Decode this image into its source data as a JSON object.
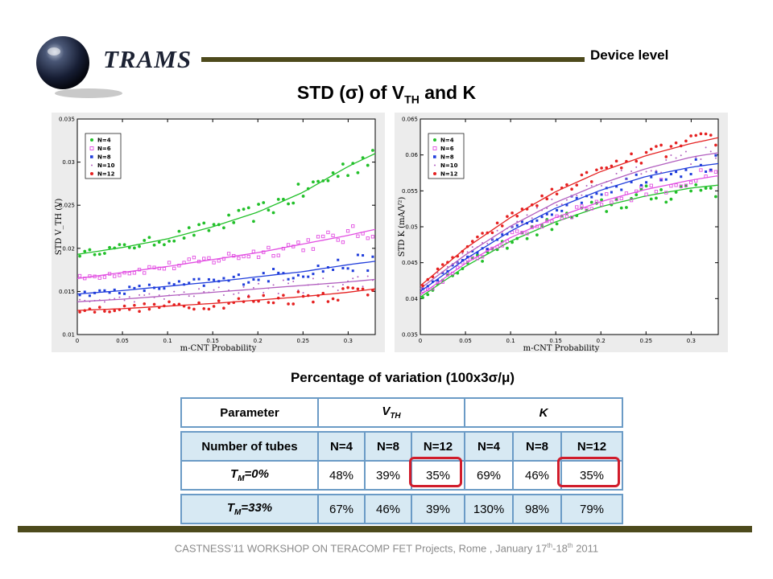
{
  "header": {
    "logo_text": "TRAMS",
    "section": "Device level",
    "title_prefix": "STD (σ) of V",
    "title_sub": "TH",
    "title_suffix": " and K"
  },
  "colors": {
    "N=4": "#22c02a",
    "N=6": "#e24fe2",
    "N=8": "#1f3ddb",
    "N=10": "#b25fbf",
    "N=12": "#e52121",
    "bar": "#4d4a1c",
    "table_border": "#6b9bc6",
    "table_fill": "#d7e9f3",
    "highlight": "#d11c2b"
  },
  "chart_data": [
    {
      "type": "scatter",
      "title": "",
      "xlabel": "m-CNT Probability",
      "ylabel": "STD V_TH (V)",
      "xlim": [
        0,
        0.33
      ],
      "ylim": [
        0.01,
        0.035
      ],
      "xticks": [
        "0",
        "0.05",
        "0.1",
        "0.15",
        "0.2",
        "0.25",
        "0.3"
      ],
      "yticks": [
        "0.01",
        "0.015",
        "0.02",
        "0.025",
        "0.03",
        "0.035"
      ],
      "legend_position": "top-left",
      "grid": false,
      "series": [
        {
          "name": "N=4",
          "marker": "o",
          "x": [
            0,
            0.05,
            0.1,
            0.15,
            0.2,
            0.25,
            0.3,
            0.33
          ],
          "y": [
            0.0193,
            0.0201,
            0.0211,
            0.0225,
            0.0242,
            0.0265,
            0.0295,
            0.031
          ]
        },
        {
          "name": "N=6",
          "marker": "square",
          "x": [
            0,
            0.05,
            0.1,
            0.15,
            0.2,
            0.25,
            0.3,
            0.33
          ],
          "y": [
            0.0165,
            0.0172,
            0.0179,
            0.0187,
            0.0195,
            0.0205,
            0.0215,
            0.0222
          ]
        },
        {
          "name": "N=8",
          "marker": "x",
          "x": [
            0,
            0.05,
            0.1,
            0.15,
            0.2,
            0.25,
            0.3,
            0.33
          ],
          "y": [
            0.0147,
            0.0151,
            0.0156,
            0.0161,
            0.0167,
            0.0173,
            0.0181,
            0.0185
          ]
        },
        {
          "name": "N=10",
          "marker": "dot",
          "x": [
            0,
            0.05,
            0.1,
            0.15,
            0.2,
            0.25,
            0.3,
            0.33
          ],
          "y": [
            0.0138,
            0.0141,
            0.0145,
            0.0149,
            0.0153,
            0.0157,
            0.0161,
            0.0164
          ]
        },
        {
          "name": "N=12",
          "marker": "star",
          "x": [
            0,
            0.05,
            0.1,
            0.15,
            0.2,
            0.25,
            0.3,
            0.33
          ],
          "y": [
            0.0128,
            0.013,
            0.0133,
            0.0136,
            0.014,
            0.0144,
            0.0149,
            0.0153
          ]
        }
      ]
    },
    {
      "type": "scatter",
      "title": "",
      "xlabel": "m-CNT Probability",
      "ylabel": "STD K (mA/V²)",
      "xlim": [
        0,
        0.33
      ],
      "ylim": [
        0.035,
        0.065
      ],
      "xticks": [
        "0",
        "0.05",
        "0.1",
        "0.15",
        "0.2",
        "0.25",
        "0.3"
      ],
      "yticks": [
        "0.035",
        "0.04",
        "0.045",
        "0.05",
        "0.055",
        "0.06",
        "0.065"
      ],
      "legend_position": "top-left",
      "grid": false,
      "series": [
        {
          "name": "N=4",
          "marker": "o",
          "x": [
            0,
            0.05,
            0.1,
            0.15,
            0.2,
            0.25,
            0.3,
            0.33
          ],
          "y": [
            0.0402,
            0.0445,
            0.048,
            0.0507,
            0.0528,
            0.0543,
            0.0554,
            0.0558
          ]
        },
        {
          "name": "N=6",
          "marker": "square",
          "x": [
            0,
            0.05,
            0.1,
            0.15,
            0.2,
            0.25,
            0.3,
            0.33
          ],
          "y": [
            0.0405,
            0.0449,
            0.0485,
            0.0513,
            0.0535,
            0.0552,
            0.0565,
            0.0571
          ]
        },
        {
          "name": "N=8",
          "marker": "x",
          "x": [
            0,
            0.05,
            0.1,
            0.15,
            0.2,
            0.25,
            0.3,
            0.33
          ],
          "y": [
            0.041,
            0.0455,
            0.0494,
            0.0526,
            0.0551,
            0.057,
            0.0583,
            0.0588
          ]
        },
        {
          "name": "N=10",
          "marker": "dot",
          "x": [
            0,
            0.05,
            0.1,
            0.15,
            0.2,
            0.25,
            0.3,
            0.33
          ],
          "y": [
            0.0414,
            0.0461,
            0.0501,
            0.0534,
            0.056,
            0.0581,
            0.0597,
            0.0603
          ]
        },
        {
          "name": "N=12",
          "marker": "star",
          "x": [
            0,
            0.05,
            0.1,
            0.15,
            0.2,
            0.25,
            0.3,
            0.33
          ],
          "y": [
            0.0418,
            0.047,
            0.0513,
            0.0549,
            0.0577,
            0.0599,
            0.0616,
            0.0624
          ]
        }
      ]
    }
  ],
  "table": {
    "heading": "Percentage of variation (100x3σ/μ)",
    "param_label": "Parameter",
    "vth_main": "V",
    "vth_sub": "TH",
    "k_label": "K",
    "tubes_label": "Number of tubes",
    "columns": [
      "N=4",
      "N=8",
      "N=12",
      "N=4",
      "N=8",
      "N=12"
    ],
    "rows": [
      {
        "label_main": "T",
        "label_sub": "M",
        "label_rest": "=0%",
        "values": [
          "48%",
          "39%",
          "35%",
          "69%",
          "46%",
          "35%"
        ]
      },
      {
        "label_main": "T",
        "label_sub": "M",
        "label_rest": "=33%",
        "values": [
          "67%",
          "46%",
          "39%",
          "130%",
          "98%",
          "79%"
        ]
      }
    ]
  },
  "footer": {
    "text": "CASTNESS’11 WORKSHOP ON TERACOMP FET Projects, Rome , January 17",
    "sup1": "th",
    "dash": "-18",
    "sup2": "th",
    "year": " 2011"
  }
}
